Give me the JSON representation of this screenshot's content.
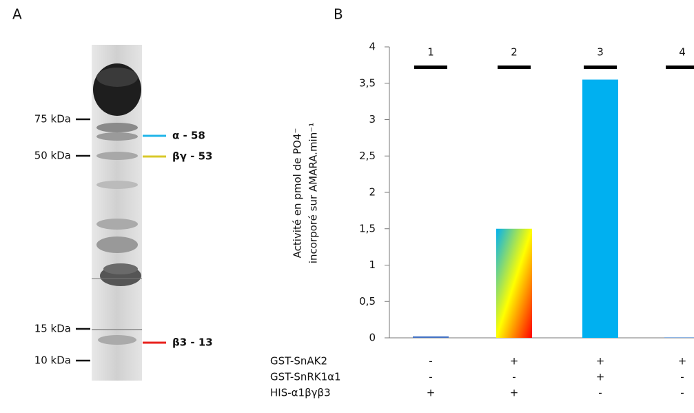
{
  "panel_labels": [
    "A",
    "B"
  ],
  "panel_a": {
    "markers": [
      {
        "label": "75 kDa"
      },
      {
        "label": "50 kDa"
      },
      {
        "label": "15 kDa"
      },
      {
        "label": "10 kDa"
      }
    ],
    "annotations": [
      {
        "label": "α - 58",
        "color": "#1fb4e8"
      },
      {
        "label": "βγ - 53",
        "color": "#d8c82a"
      },
      {
        "label": "β3 - 13",
        "color": "#e8201c"
      }
    ]
  },
  "chart_data": {
    "type": "bar",
    "ylabel": [
      "Activité en pmol de PO4⁻",
      "incorporé sur AMARA.min⁻¹"
    ],
    "categories": [
      "1",
      "2",
      "3",
      "4"
    ],
    "values": [
      0.02,
      1.5,
      3.55,
      0.01
    ],
    "colors": [
      "#4472c4",
      [
        "#00b0f0",
        "#ffff00",
        "#ff0000"
      ],
      "#00b0f0",
      "#8db3e2"
    ],
    "ylim": [
      0,
      4
    ],
    "yticks": [
      0,
      {
        "value": 0.5,
        "label": "0,5"
      },
      1,
      {
        "value": 1.5,
        "label": "1,5"
      },
      2,
      {
        "value": 2.5,
        "label": "2,5"
      },
      3,
      {
        "value": 3.5,
        "label": "3,5"
      },
      4
    ],
    "grid": false,
    "conditions": [
      {
        "label": "GST-SnAK2",
        "values": [
          "-",
          "+",
          "+",
          "+"
        ]
      },
      {
        "label": "GST-SnRK1α1",
        "values": [
          "-",
          "-",
          "+",
          "-"
        ]
      },
      {
        "label": "HIS-α1βγβ3",
        "values": [
          "+",
          "+",
          "-",
          "-"
        ]
      }
    ]
  }
}
